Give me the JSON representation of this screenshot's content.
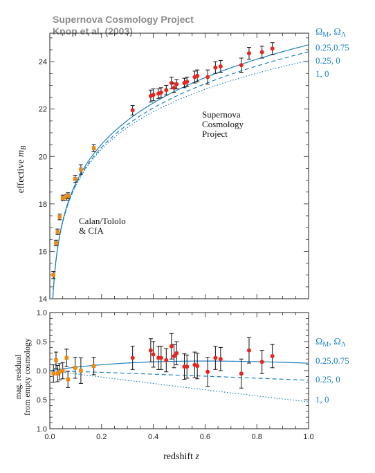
{
  "header": {
    "line1": "Supernova Cosmology Project",
    "line2": "Knop et al. (2003)"
  },
  "legend": {
    "title_main": "Ω",
    "title_sub1": "M",
    "title_mid": ", Ω",
    "title_sub2": "Λ",
    "entries": [
      "0.25,0.75",
      "0.25, 0",
      "1,    0"
    ]
  },
  "annotations": {
    "scp": [
      "Supernova",
      "Cosmology",
      "Project"
    ],
    "calan": [
      "Calan/Tololo",
      "& CfA"
    ]
  },
  "chart_data": [
    {
      "type": "scatter",
      "panel": "top",
      "title": "",
      "ylabel_prefix": "effective ",
      "ylabel_var": "m",
      "ylabel_sub": "B",
      "xlim": [
        0,
        1.0
      ],
      "ylim": [
        14,
        25.2
      ],
      "yticks": [
        14,
        16,
        18,
        20,
        22,
        24
      ],
      "series": [
        {
          "name": "Calan/Tololo & CfA",
          "color": "#f08a10",
          "x": [
            0.014,
            0.024,
            0.03,
            0.038,
            0.05,
            0.065,
            0.07,
            0.098,
            0.12,
            0.17
          ],
          "y": [
            15.0,
            16.35,
            16.82,
            17.45,
            18.25,
            18.28,
            18.35,
            19.05,
            19.45,
            20.35
          ],
          "err": [
            0.15,
            0.12,
            0.12,
            0.12,
            0.12,
            0.12,
            0.12,
            0.15,
            0.2,
            0.15
          ]
        },
        {
          "name": "Supernova Cosmology Project",
          "color": "#e8251f",
          "x": [
            0.32,
            0.39,
            0.4,
            0.42,
            0.43,
            0.45,
            0.47,
            0.48,
            0.49,
            0.52,
            0.53,
            0.56,
            0.57,
            0.61,
            0.64,
            0.66,
            0.74,
            0.77,
            0.82,
            0.86
          ],
          "y": [
            21.95,
            22.55,
            22.6,
            22.65,
            22.7,
            22.8,
            23.1,
            22.9,
            23.05,
            23.1,
            23.15,
            23.35,
            23.4,
            23.35,
            23.75,
            23.8,
            23.85,
            24.35,
            24.4,
            24.55
          ],
          "err": [
            0.2,
            0.25,
            0.25,
            0.2,
            0.2,
            0.2,
            0.25,
            0.2,
            0.2,
            0.2,
            0.2,
            0.25,
            0.25,
            0.3,
            0.25,
            0.25,
            0.3,
            0.25,
            0.25,
            0.25
          ]
        }
      ]
    },
    {
      "type": "scatter",
      "panel": "bottom",
      "xlabel_prefix": "redshift ",
      "xlabel_var": "z",
      "ylabel_line1": "mag. residual",
      "ylabel_line2": "from empty cosmology",
      "xlim": [
        0,
        1.0
      ],
      "ylim": [
        1.0,
        -1.0
      ],
      "xticks": [
        0.0,
        0.2,
        0.4,
        0.6,
        0.8,
        1.0
      ],
      "xtick_labels": [
        "0.0",
        "0.2",
        "0.4",
        "0.6",
        "0.8",
        "1.0"
      ],
      "yticks": [
        1.0,
        0.5,
        0.0,
        -0.5,
        -1.0
      ],
      "ytick_labels": [
        "1.0",
        "0.5",
        "0.0",
        "0.5",
        "1.0"
      ],
      "series": [
        {
          "name": "Calan/Tololo & CfA",
          "color": "#f08a10",
          "x": [
            0.014,
            0.024,
            0.03,
            0.038,
            0.05,
            0.065,
            0.07,
            0.098,
            0.12,
            0.17
          ],
          "y": [
            0.05,
            -0.18,
            0.05,
            0.02,
            0.0,
            -0.22,
            0.15,
            -0.05,
            0.0,
            -0.08
          ],
          "err": [
            0.15,
            0.14,
            0.14,
            0.14,
            0.14,
            0.15,
            0.14,
            0.18,
            0.22,
            0.15
          ]
        },
        {
          "name": "Supernova Cosmology Project",
          "color": "#e8251f",
          "x": [
            0.32,
            0.39,
            0.4,
            0.42,
            0.43,
            0.45,
            0.47,
            0.48,
            0.49,
            0.52,
            0.53,
            0.56,
            0.57,
            0.61,
            0.64,
            0.66,
            0.74,
            0.77,
            0.82,
            0.86
          ],
          "y": [
            -0.22,
            -0.35,
            -0.28,
            -0.22,
            -0.22,
            -0.18,
            -0.42,
            -0.25,
            -0.3,
            -0.07,
            -0.07,
            -0.1,
            -0.08,
            0.02,
            -0.22,
            -0.2,
            0.05,
            -0.35,
            -0.15,
            -0.25
          ],
          "err": [
            0.2,
            0.2,
            0.22,
            0.2,
            0.2,
            0.2,
            0.22,
            0.2,
            0.2,
            0.22,
            0.2,
            0.22,
            0.22,
            0.25,
            0.2,
            0.2,
            0.25,
            0.22,
            0.2,
            0.2
          ]
        }
      ]
    }
  ],
  "colors": {
    "model": "#1a7fc0",
    "axis": "#222222",
    "header": "#888888"
  }
}
